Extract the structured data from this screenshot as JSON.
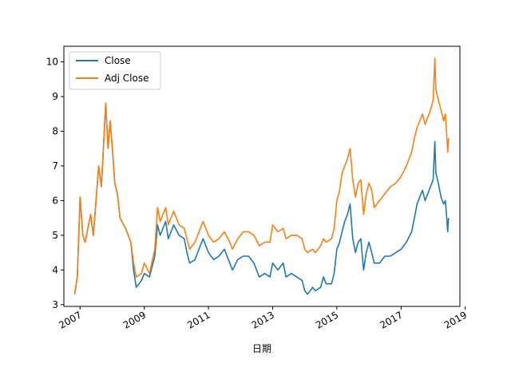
{
  "chart_data": {
    "type": "line",
    "title": "",
    "xlabel": "日期",
    "ylabel": "",
    "xlim": [
      "2006-07-01",
      "2018-11-01"
    ],
    "ylim": [
      2.95,
      10.45
    ],
    "grid": false,
    "legend_position": "top-left",
    "x_ticks": [
      "2007",
      "2009",
      "2011",
      "2013",
      "2015",
      "2017",
      "2019"
    ],
    "y_ticks": [
      3,
      4,
      5,
      6,
      7,
      8,
      9,
      10
    ],
    "series": [
      {
        "name": "Close",
        "color": "#1f77b4",
        "points": [
          [
            "2006-11-01",
            3.3
          ],
          [
            "2006-12-01",
            3.8
          ],
          [
            "2007-01-01",
            6.1
          ],
          [
            "2007-02-01",
            5.0
          ],
          [
            "2007-03-01",
            4.8
          ],
          [
            "2007-05-01",
            5.6
          ],
          [
            "2007-06-01",
            5.0
          ],
          [
            "2007-08-01",
            7.0
          ],
          [
            "2007-09-01",
            6.4
          ],
          [
            "2007-10-20",
            8.8
          ],
          [
            "2007-11-15",
            7.5
          ],
          [
            "2007-12-10",
            8.3
          ],
          [
            "2008-01-01",
            7.6
          ],
          [
            "2008-02-01",
            6.5
          ],
          [
            "2008-03-01",
            6.2
          ],
          [
            "2008-04-01",
            5.5
          ],
          [
            "2008-06-01",
            5.2
          ],
          [
            "2008-08-01",
            4.8
          ],
          [
            "2008-09-01",
            4.0
          ],
          [
            "2008-10-01",
            3.5
          ],
          [
            "2008-12-01",
            3.7
          ],
          [
            "2009-01-01",
            3.9
          ],
          [
            "2009-03-01",
            3.8
          ],
          [
            "2009-05-01",
            4.4
          ],
          [
            "2009-06-01",
            5.3
          ],
          [
            "2009-07-01",
            5.0
          ],
          [
            "2009-09-01",
            5.4
          ],
          [
            "2009-10-01",
            4.9
          ],
          [
            "2009-12-01",
            5.3
          ],
          [
            "2010-02-01",
            5.0
          ],
          [
            "2010-04-01",
            4.9
          ],
          [
            "2010-05-01",
            4.5
          ],
          [
            "2010-06-01",
            4.2
          ],
          [
            "2010-08-01",
            4.3
          ],
          [
            "2010-10-01",
            4.7
          ],
          [
            "2010-11-01",
            4.9
          ],
          [
            "2011-01-01",
            4.5
          ],
          [
            "2011-03-01",
            4.3
          ],
          [
            "2011-05-01",
            4.4
          ],
          [
            "2011-07-01",
            4.6
          ],
          [
            "2011-09-01",
            4.2
          ],
          [
            "2011-10-01",
            4.0
          ],
          [
            "2011-12-01",
            4.3
          ],
          [
            "2012-02-01",
            4.4
          ],
          [
            "2012-04-01",
            4.4
          ],
          [
            "2012-06-01",
            4.2
          ],
          [
            "2012-08-01",
            3.8
          ],
          [
            "2012-10-01",
            3.9
          ],
          [
            "2012-12-01",
            3.8
          ],
          [
            "2013-01-01",
            4.2
          ],
          [
            "2013-03-01",
            4.0
          ],
          [
            "2013-05-01",
            4.2
          ],
          [
            "2013-06-01",
            3.8
          ],
          [
            "2013-08-01",
            3.9
          ],
          [
            "2013-10-01",
            3.8
          ],
          [
            "2013-12-01",
            3.7
          ],
          [
            "2014-01-01",
            3.4
          ],
          [
            "2014-02-01",
            3.3
          ],
          [
            "2014-04-01",
            3.5
          ],
          [
            "2014-05-01",
            3.4
          ],
          [
            "2014-07-01",
            3.5
          ],
          [
            "2014-08-01",
            3.8
          ],
          [
            "2014-09-01",
            3.6
          ],
          [
            "2014-11-01",
            3.6
          ],
          [
            "2014-12-01",
            3.9
          ],
          [
            "2015-01-01",
            4.6
          ],
          [
            "2015-02-01",
            4.8
          ],
          [
            "2015-03-01",
            5.1
          ],
          [
            "2015-04-01",
            5.4
          ],
          [
            "2015-05-01",
            5.6
          ],
          [
            "2015-06-01",
            5.9
          ],
          [
            "2015-07-01",
            4.9
          ],
          [
            "2015-08-01",
            4.5
          ],
          [
            "2015-09-01",
            4.8
          ],
          [
            "2015-10-01",
            4.9
          ],
          [
            "2015-11-01",
            4.0
          ],
          [
            "2015-12-01",
            4.5
          ],
          [
            "2016-01-01",
            4.8
          ],
          [
            "2016-02-01",
            4.5
          ],
          [
            "2016-03-01",
            4.2
          ],
          [
            "2016-05-01",
            4.2
          ],
          [
            "2016-07-01",
            4.4
          ],
          [
            "2016-09-01",
            4.4
          ],
          [
            "2016-11-01",
            4.5
          ],
          [
            "2017-01-01",
            4.6
          ],
          [
            "2017-03-01",
            4.8
          ],
          [
            "2017-05-01",
            5.1
          ],
          [
            "2017-06-01",
            5.5
          ],
          [
            "2017-07-01",
            5.9
          ],
          [
            "2017-08-01",
            6.1
          ],
          [
            "2017-09-01",
            6.3
          ],
          [
            "2017-10-01",
            6.0
          ],
          [
            "2017-11-01",
            6.2
          ],
          [
            "2017-12-01",
            6.4
          ],
          [
            "2018-01-01",
            6.6
          ],
          [
            "2018-01-20",
            7.7
          ],
          [
            "2018-02-01",
            6.8
          ],
          [
            "2018-03-01",
            6.5
          ],
          [
            "2018-04-01",
            6.1
          ],
          [
            "2018-05-01",
            5.9
          ],
          [
            "2018-05-20",
            6.0
          ],
          [
            "2018-06-01",
            5.6
          ],
          [
            "2018-06-15",
            5.1
          ],
          [
            "2018-06-25",
            5.5
          ]
        ]
      },
      {
        "name": "Adj Close",
        "color": "#ff7f0e",
        "points": [
          [
            "2006-11-01",
            3.3
          ],
          [
            "2006-12-01",
            3.8
          ],
          [
            "2007-01-01",
            6.1
          ],
          [
            "2007-02-01",
            5.0
          ],
          [
            "2007-03-01",
            4.8
          ],
          [
            "2007-05-01",
            5.6
          ],
          [
            "2007-06-01",
            5.0
          ],
          [
            "2007-08-01",
            7.0
          ],
          [
            "2007-09-01",
            6.4
          ],
          [
            "2007-10-20",
            8.8
          ],
          [
            "2007-11-15",
            7.5
          ],
          [
            "2007-12-10",
            8.3
          ],
          [
            "2008-01-01",
            7.6
          ],
          [
            "2008-02-01",
            6.5
          ],
          [
            "2008-03-01",
            6.2
          ],
          [
            "2008-04-01",
            5.5
          ],
          [
            "2008-06-01",
            5.2
          ],
          [
            "2008-08-01",
            4.8
          ],
          [
            "2008-09-01",
            4.2
          ],
          [
            "2008-10-01",
            3.8
          ],
          [
            "2008-12-01",
            3.9
          ],
          [
            "2009-01-01",
            4.2
          ],
          [
            "2009-03-01",
            3.9
          ],
          [
            "2009-05-01",
            4.6
          ],
          [
            "2009-06-01",
            5.8
          ],
          [
            "2009-07-01",
            5.4
          ],
          [
            "2009-09-01",
            5.8
          ],
          [
            "2009-10-01",
            5.3
          ],
          [
            "2009-12-01",
            5.7
          ],
          [
            "2010-02-01",
            5.3
          ],
          [
            "2010-04-01",
            5.2
          ],
          [
            "2010-05-01",
            4.9
          ],
          [
            "2010-06-01",
            4.6
          ],
          [
            "2010-08-01",
            4.8
          ],
          [
            "2010-10-01",
            5.2
          ],
          [
            "2010-11-01",
            5.4
          ],
          [
            "2011-01-01",
            5.0
          ],
          [
            "2011-03-01",
            4.8
          ],
          [
            "2011-05-01",
            4.9
          ],
          [
            "2011-07-01",
            5.1
          ],
          [
            "2011-09-01",
            4.8
          ],
          [
            "2011-10-01",
            4.6
          ],
          [
            "2011-12-01",
            4.9
          ],
          [
            "2012-02-01",
            5.1
          ],
          [
            "2012-04-01",
            5.1
          ],
          [
            "2012-06-01",
            5.0
          ],
          [
            "2012-08-01",
            4.7
          ],
          [
            "2012-10-01",
            4.8
          ],
          [
            "2012-12-01",
            4.8
          ],
          [
            "2013-01-01",
            5.3
          ],
          [
            "2013-03-01",
            5.1
          ],
          [
            "2013-05-01",
            5.2
          ],
          [
            "2013-06-01",
            4.9
          ],
          [
            "2013-08-01",
            5.0
          ],
          [
            "2013-10-01",
            5.0
          ],
          [
            "2013-12-01",
            4.9
          ],
          [
            "2014-01-01",
            4.6
          ],
          [
            "2014-02-01",
            4.5
          ],
          [
            "2014-04-01",
            4.6
          ],
          [
            "2014-05-01",
            4.5
          ],
          [
            "2014-07-01",
            4.7
          ],
          [
            "2014-08-01",
            4.9
          ],
          [
            "2014-09-01",
            4.8
          ],
          [
            "2014-11-01",
            4.9
          ],
          [
            "2014-12-01",
            5.2
          ],
          [
            "2015-01-01",
            6.0
          ],
          [
            "2015-02-01",
            6.3
          ],
          [
            "2015-03-01",
            6.8
          ],
          [
            "2015-04-01",
            7.0
          ],
          [
            "2015-05-01",
            7.2
          ],
          [
            "2015-06-01",
            7.5
          ],
          [
            "2015-07-01",
            6.6
          ],
          [
            "2015-08-01",
            6.1
          ],
          [
            "2015-09-01",
            6.5
          ],
          [
            "2015-10-01",
            6.6
          ],
          [
            "2015-11-01",
            5.6
          ],
          [
            "2015-12-01",
            6.2
          ],
          [
            "2016-01-01",
            6.5
          ],
          [
            "2016-02-01",
            6.3
          ],
          [
            "2016-03-01",
            5.8
          ],
          [
            "2016-05-01",
            6.0
          ],
          [
            "2016-07-01",
            6.2
          ],
          [
            "2016-09-01",
            6.4
          ],
          [
            "2016-11-01",
            6.5
          ],
          [
            "2017-01-01",
            6.7
          ],
          [
            "2017-03-01",
            7.0
          ],
          [
            "2017-05-01",
            7.4
          ],
          [
            "2017-06-01",
            7.8
          ],
          [
            "2017-07-01",
            8.1
          ],
          [
            "2017-08-01",
            8.3
          ],
          [
            "2017-09-01",
            8.5
          ],
          [
            "2017-10-01",
            8.2
          ],
          [
            "2017-11-01",
            8.4
          ],
          [
            "2017-12-01",
            8.6
          ],
          [
            "2018-01-01",
            8.9
          ],
          [
            "2018-01-20",
            10.1
          ],
          [
            "2018-02-01",
            9.2
          ],
          [
            "2018-03-01",
            8.9
          ],
          [
            "2018-04-01",
            8.6
          ],
          [
            "2018-05-01",
            8.3
          ],
          [
            "2018-05-20",
            8.5
          ],
          [
            "2018-06-01",
            8.0
          ],
          [
            "2018-06-15",
            7.4
          ],
          [
            "2018-06-25",
            7.8
          ]
        ]
      }
    ]
  }
}
